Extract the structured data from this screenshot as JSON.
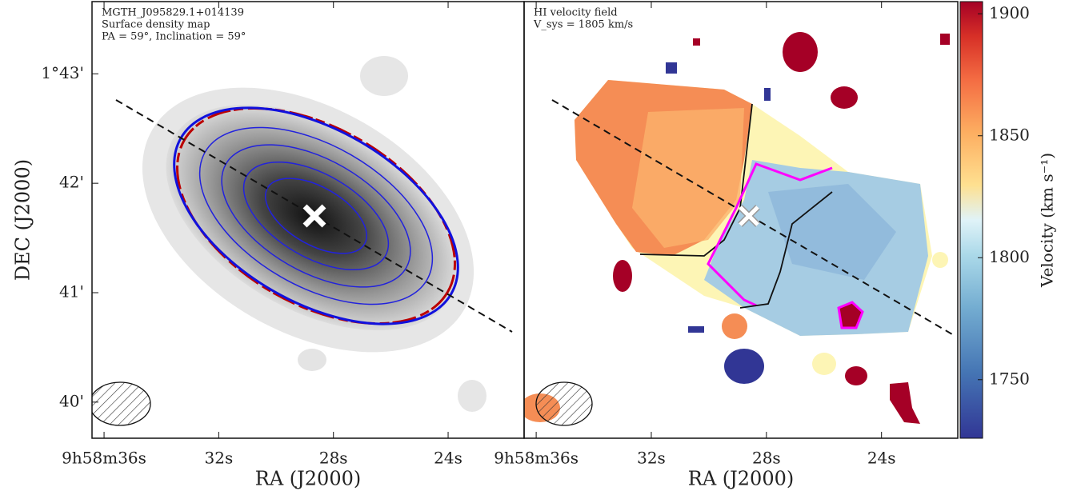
{
  "chart_data": [
    {
      "type": "image",
      "annotations": [
        "MGTH_J095829.1+014139",
        "Surface density map",
        "PA = 59°, Inclination = 59°"
      ],
      "xlabel": "RA (J2000)",
      "ylabel": "DEC (J2000)",
      "xlim": [
        36.42,
        21.35
      ],
      "xticks": [
        {
          "value": 36,
          "label": "9h58m36s"
        },
        {
          "value": 32,
          "label": "32s"
        },
        {
          "value": 28,
          "label": "28s"
        },
        {
          "value": 24,
          "label": "24s"
        }
      ],
      "ylim": [
        39.67,
        43.66
      ],
      "yticks": [
        {
          "value": 43,
          "label": "1°43'"
        },
        {
          "value": 42,
          "label": "42'"
        },
        {
          "value": 41,
          "label": "41'"
        },
        {
          "value": 40,
          "label": "40'"
        }
      ]
    },
    {
      "type": "image",
      "annotations": [
        "HI velocity field",
        "V_sys = 1805 km/s"
      ],
      "xlabel": "RA (J2000)",
      "xlim": [
        36.42,
        21.35
      ],
      "xticks": [
        {
          "value": 36,
          "label": "9h58m36s"
        },
        {
          "value": 32,
          "label": "32s"
        },
        {
          "value": 28,
          "label": "28s"
        },
        {
          "value": 24,
          "label": "24s"
        }
      ],
      "colorbar": {
        "label": "Velocity (km s⁻¹)",
        "lim": [
          1726,
          1905
        ],
        "ticks": [
          1750,
          1800,
          1850,
          1900
        ]
      }
    }
  ]
}
